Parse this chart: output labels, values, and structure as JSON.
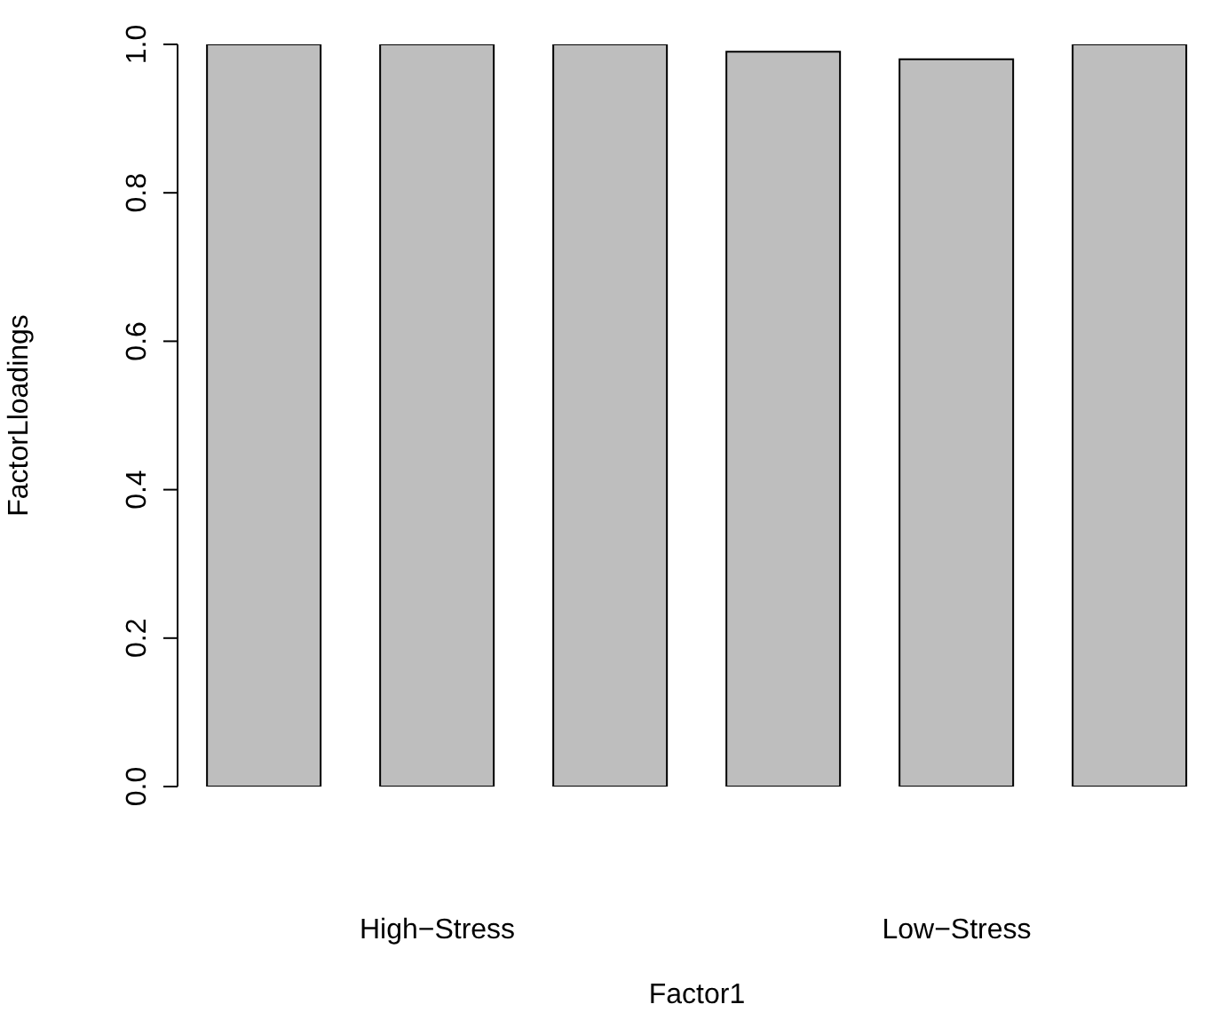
{
  "chart_data": {
    "type": "bar",
    "categories": [
      null,
      "High−Stress",
      null,
      null,
      "Low−Stress",
      null
    ],
    "values": [
      1.0,
      1.0,
      1.0,
      0.99,
      0.98,
      1.0
    ],
    "color": "#bebebe",
    "xlabel": "Factor1",
    "ylabel": "FactorLloadings",
    "ylim": [
      0,
      1
    ],
    "yticks": [
      {
        "value": 0,
        "label": "0.0"
      },
      0.2,
      0.4,
      0.6,
      0.8,
      {
        "value": 1,
        "label": "1.0"
      }
    ],
    "grid": false,
    "legend": false
  }
}
